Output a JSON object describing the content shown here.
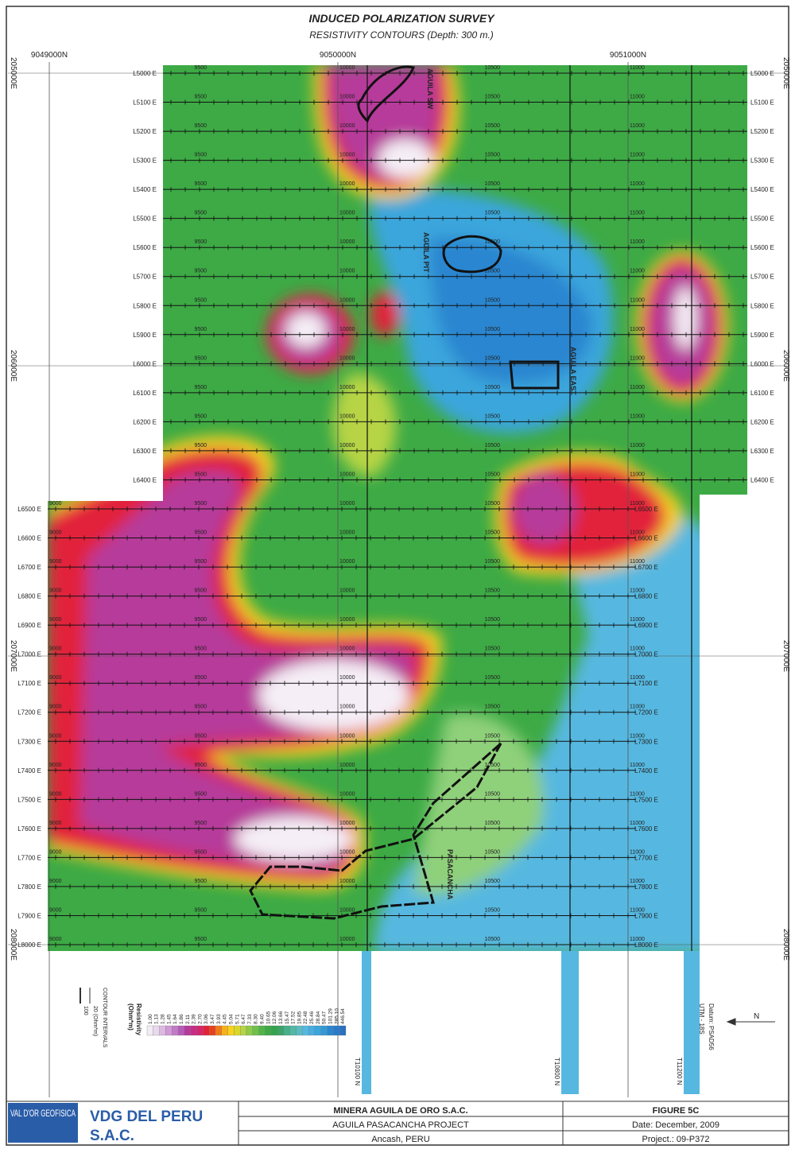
{
  "header": {
    "title": "INDUCED POLARIZATION SURVEY",
    "subtitle": "RESISTIVITY CONTOURS (Depth: 300 m.)"
  },
  "grid": {
    "northings": [
      "9049000N",
      "9050000N",
      "9051000N"
    ],
    "eastings": [
      "205000E",
      "206000E",
      "207000E",
      "208000E"
    ]
  },
  "survey_lines": [
    "L5000 E",
    "L5100 E",
    "L5200 E",
    "L5300 E",
    "L5400 E",
    "L5500 E",
    "L5600 E",
    "L5700 E",
    "L5800 E",
    "L5900 E",
    "L6000 E",
    "L6100 E",
    "L6200 E",
    "L6300 E",
    "L6400 E",
    "L6500 E",
    "L6600 E",
    "L6700 E",
    "L6800 E",
    "L6900 E",
    "L7000 E",
    "L7100 E",
    "L7200 E",
    "L7300 E",
    "L7400 E",
    "L7500 E",
    "L7600 E",
    "L7700 E",
    "L7800 E",
    "L7900 E",
    "L8000 E"
  ],
  "station_values": [
    9000,
    9500,
    10000,
    10500,
    11000
  ],
  "tie_lines": [
    "T10100 N",
    "T10800 N",
    "T11200 N"
  ],
  "annotations": [
    "AGUILA SW",
    "AGUILA PIT",
    "AGUILA EAST",
    "PASACANCHA"
  ],
  "legend": {
    "title": "Resistivity",
    "unit": "(Ohm*m)",
    "values": [
      "1.00",
      "1.13",
      "1.28",
      "1.45",
      "1.64",
      "1.86",
      "2.11",
      "2.39",
      "2.70",
      "3.06",
      "3.47",
      "3.93",
      "4.45",
      "5.04",
      "5.71",
      "6.47",
      "7.33",
      "8.30",
      "9.40",
      "10.65",
      "12.06",
      "13.66",
      "15.47",
      "17.52",
      "19.85",
      "22.48",
      "25.46",
      "28.84",
      "50.47",
      "101.29",
      "285.10",
      "446.54"
    ],
    "contour_label": "CONTOUR INTERVALS",
    "contour_minor": "20 (Ohm*m)",
    "contour_major": "100"
  },
  "projection": {
    "zone": "UTM - 18S",
    "datum": "Datum: PSAD56"
  },
  "title_block": {
    "logo": "VAL D'OR GEOFISICA",
    "company_line1": "VDG DEL PERU",
    "company_line2": "S.A.C.",
    "client": "MINERA AGUILA DE ORO S.A.C.",
    "project": "AGUILA PASACANCHA PROJECT",
    "location": "Ancash, PERU",
    "figure": "FIGURE 5C",
    "date": "Date: December, 2009",
    "project_no": "Project.: 09-P372"
  }
}
